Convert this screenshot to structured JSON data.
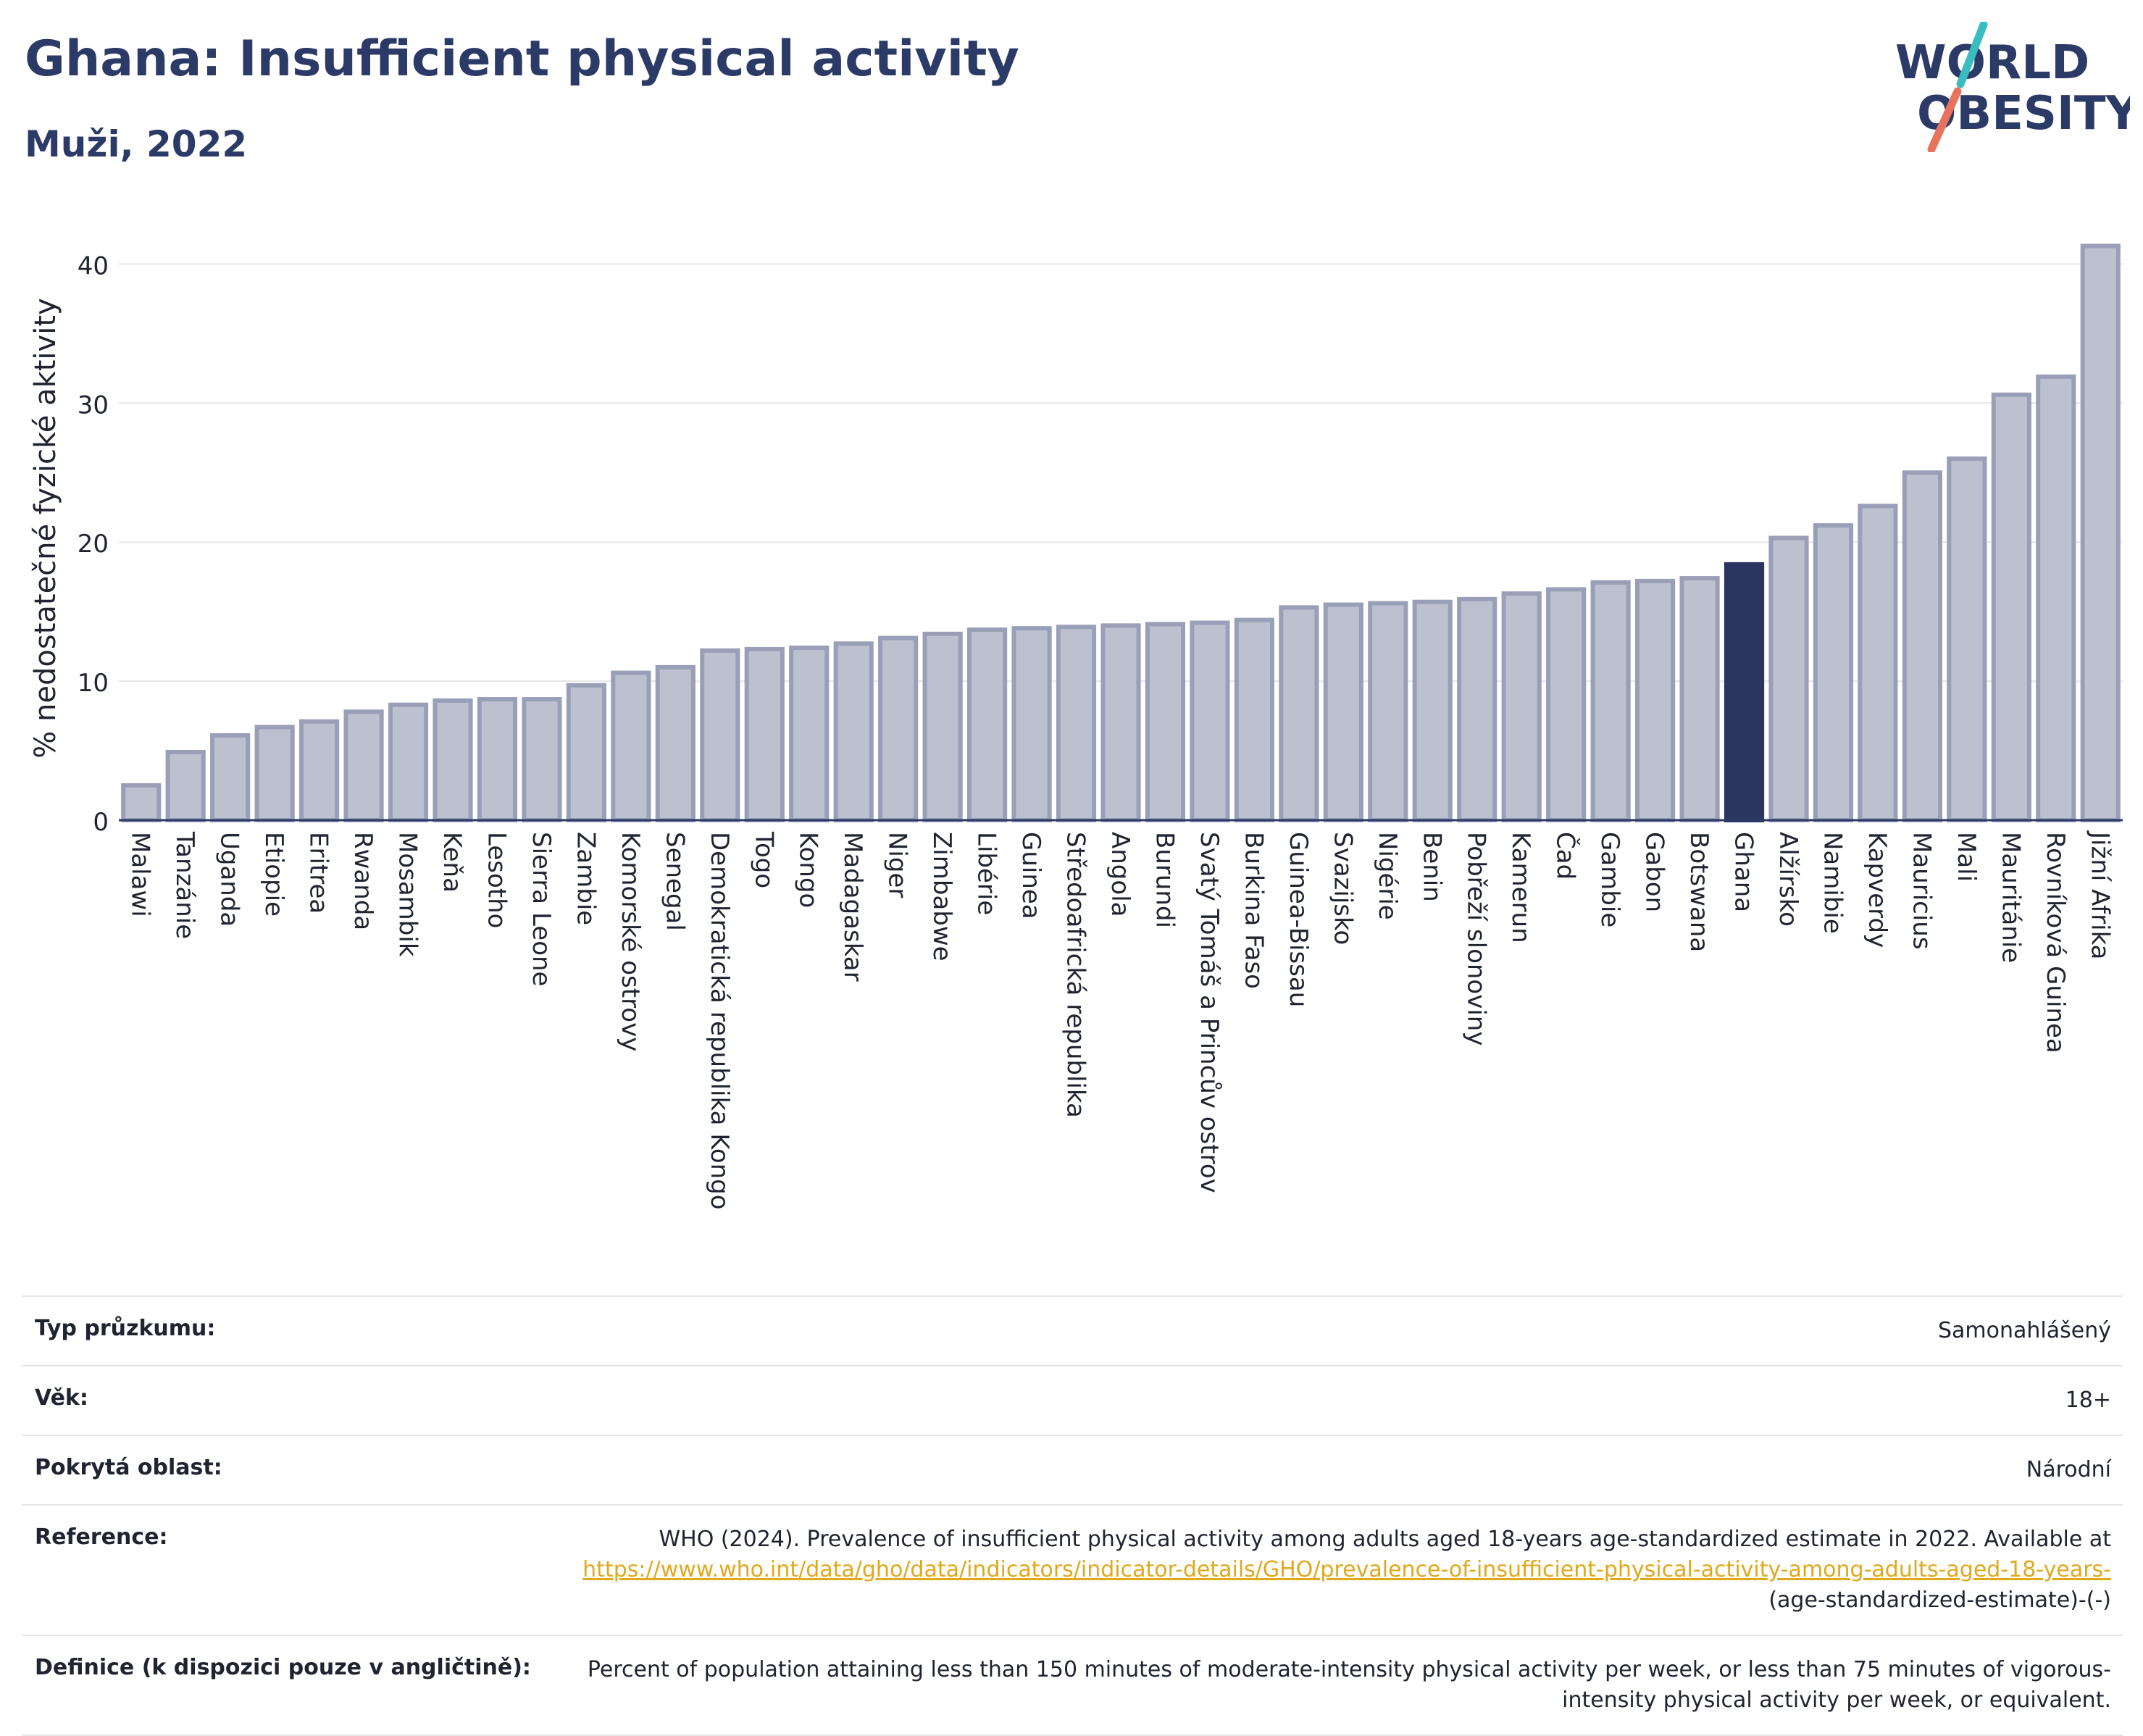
{
  "title": "Ghana: Insufficient physical activity",
  "subtitle": "Muži, 2022",
  "logo": {
    "line1": "WORLD",
    "line2": "OBESITY",
    "accent_teal": "#3bbdc0",
    "accent_red": "#e8735c",
    "text_color": "#2b3a67"
  },
  "chart_data": {
    "type": "bar",
    "ylabel": "% nedostatečné fyzické aktivity",
    "xlabel": "",
    "ylim": [
      0,
      42
    ],
    "yticks": [
      0,
      10,
      20,
      30,
      40
    ],
    "grid": true,
    "highlight": "Ghana",
    "colors": {
      "bar": "#bcc0cf",
      "bar_edge": "#9a9fb8",
      "highlight": "#2b3560",
      "grid": "#e6e6ea",
      "axis": "#2b3a67"
    },
    "categories": [
      "Malawi",
      "Tanzánie",
      "Uganda",
      "Etiopie",
      "Eritrea",
      "Rwanda",
      "Mosambik",
      "Keňa",
      "Lesotho",
      "Sierra Leone",
      "Zambie",
      "Komorské ostrovy",
      "Senegal",
      "Demokratická republika Kongo",
      "Togo",
      "Kongo",
      "Madagaskar",
      "Niger",
      "Zimbabwe",
      "Libérie",
      "Guinea",
      "Středoafrická republika",
      "Angola",
      "Burundi",
      "Svatý Tomáš a Princův ostrov",
      "Burkina Faso",
      "Guinea-Bissau",
      "Svazijsko",
      "Nigérie",
      "Benin",
      "Pobřeží slonoviny",
      "Kamerun",
      "Čad",
      "Gambie",
      "Gabon",
      "Botswana",
      "Ghana",
      "Alžírsko",
      "Namibie",
      "Kapverdy",
      "Mauricius",
      "Mali",
      "Mauritánie",
      "Rovníková Guinea",
      "Jižní Afrika"
    ],
    "values": [
      2.5,
      4.9,
      6.1,
      6.7,
      7.1,
      7.8,
      8.3,
      8.6,
      8.7,
      8.7,
      9.7,
      10.6,
      11.0,
      12.2,
      12.3,
      12.4,
      12.7,
      13.1,
      13.4,
      13.7,
      13.8,
      13.9,
      14.0,
      14.1,
      14.2,
      14.4,
      15.3,
      15.5,
      15.6,
      15.7,
      15.9,
      16.3,
      16.6,
      17.1,
      17.2,
      17.4,
      18.4,
      20.3,
      21.2,
      22.6,
      25.0,
      26.0,
      30.6,
      31.9,
      41.3
    ]
  },
  "details": [
    {
      "label": "Typ průzkumu:",
      "value": "Samonahlášený"
    },
    {
      "label": "Věk:",
      "value": "18+"
    },
    {
      "label": "Pokrytá oblast:",
      "value": "Národní"
    },
    {
      "label": "Reference:",
      "value": "WHO (2024). Prevalence of insufficient physical activity among adults aged 18-years age-standardized estimate in 2022. Available at",
      "link": "https://www.who.int/data/gho/data/indicators/indicator-details/GHO/prevalence-of-insufficient-physical-activity-among-adults-aged-18-years-",
      "suffix": "(age-standardized-estimate)-(-)"
    },
    {
      "label": "Definice (k dispozici pouze v angličtině):",
      "value": "Percent of population attaining less than 150 minutes of moderate-intensity physical activity per week, or less than 75 minutes of vigorous-intensity physical activity per week, or equivalent."
    }
  ]
}
